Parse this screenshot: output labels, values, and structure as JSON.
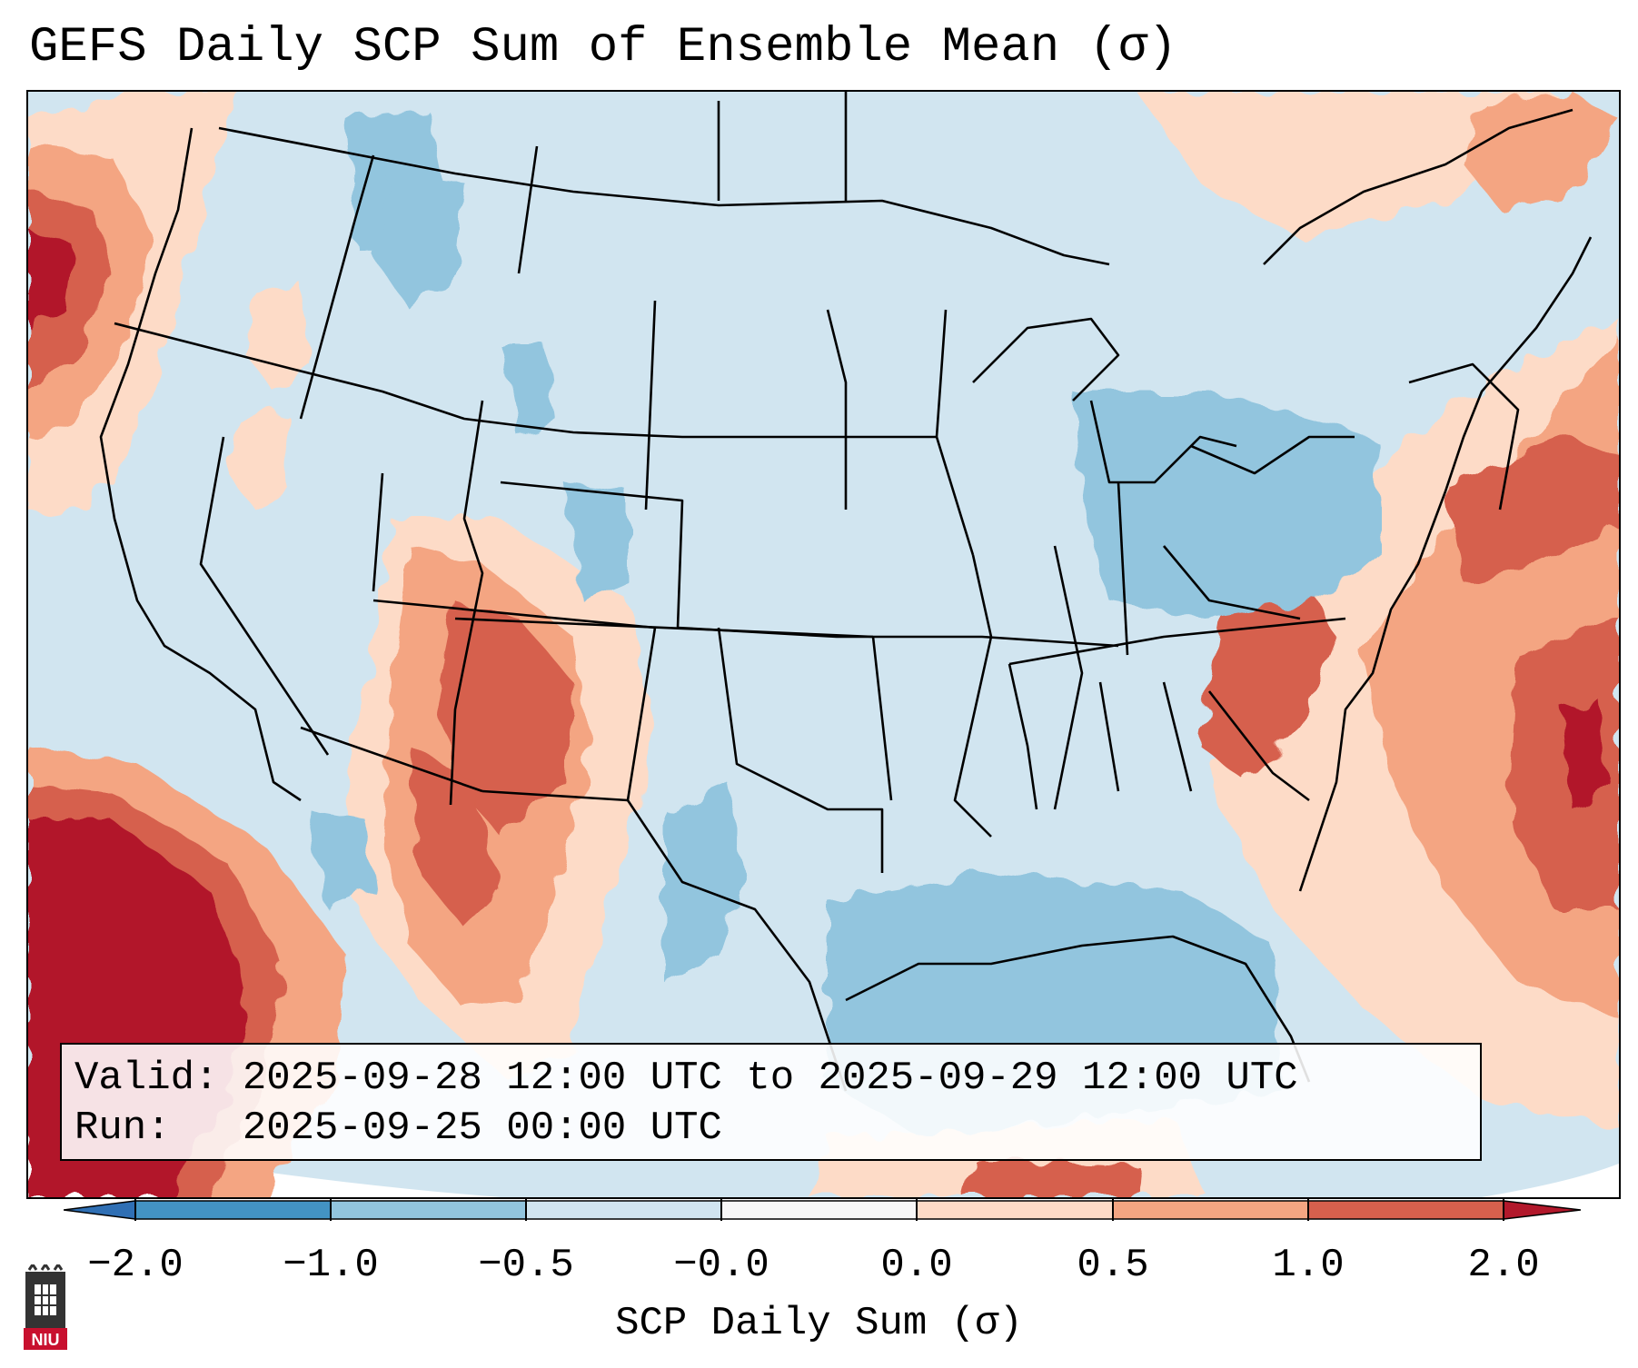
{
  "title": "GEFS Daily SCP Sum of Ensemble Mean (σ)",
  "info": {
    "valid_label": "Valid:",
    "valid_value": "2025-09-28 12:00 UTC to 2025-09-29 12:00 UTC",
    "run_label": "Run:",
    "run_value": "2025-09-25 00:00 UTC"
  },
  "colorbar": {
    "label": "SCP Daily Sum (σ)",
    "ticks": [
      "−2.0",
      "−1.0",
      "−0.5",
      "−0.0",
      "0.0",
      "0.5",
      "1.0",
      "2.0"
    ],
    "colors": {
      "under": "#2f6fb4",
      "bin_neg2_neg1": "#4393c3",
      "bin_neg1_neg05": "#92c5de",
      "bin_neg05_0": "#d1e5f0",
      "bin_0_0": "#f7f7f7",
      "bin_0_05": "#fddbc7",
      "bin_05_1": "#f4a582",
      "bin_1_2": "#d6604d",
      "over": "#b2182b"
    }
  },
  "logo": {
    "text": "NIU"
  }
}
